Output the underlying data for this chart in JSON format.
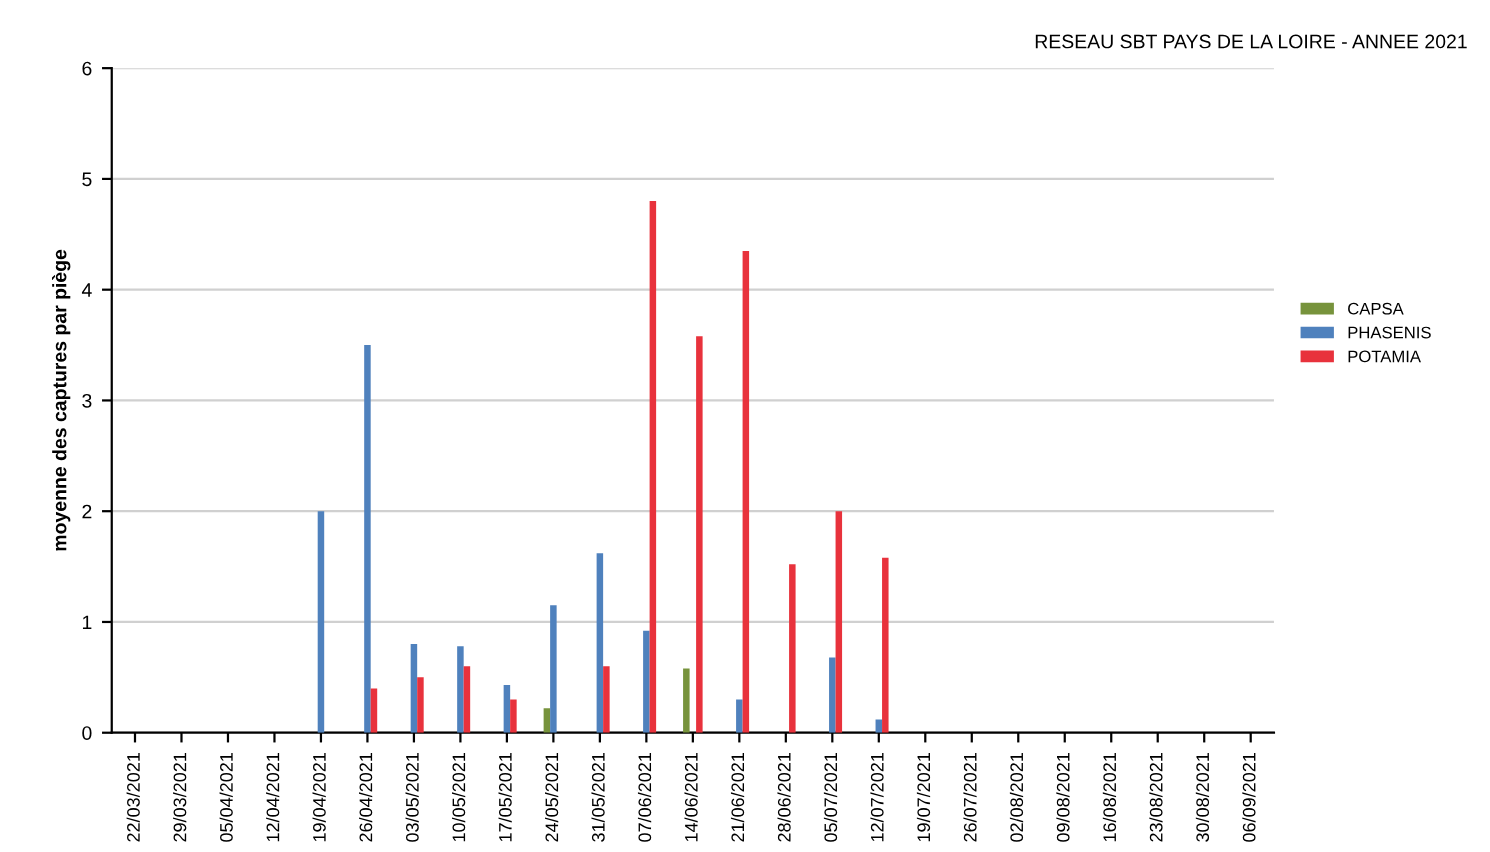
{
  "chart_data": {
    "type": "bar",
    "title": "RESEAU SBT PAYS DE LA LOIRE - ANNEE 2021",
    "ylabel": "moyenne des captures par piège",
    "categories": [
      "22/03/2021",
      "29/03/2021",
      "05/04/2021",
      "12/04/2021",
      "19/04/2021",
      "26/04/2021",
      "03/05/2021",
      "10/05/2021",
      "17/05/2021",
      "24/05/2021",
      "31/05/2021",
      "07/06/2021",
      "14/06/2021",
      "21/06/2021",
      "28/06/2021",
      "05/07/2021",
      "12/07/2021",
      "19/07/2021",
      "26/07/2021",
      "02/08/2021",
      "09/08/2021",
      "16/08/2021",
      "23/08/2021",
      "30/08/2021",
      "06/09/2021"
    ],
    "series": [
      {
        "name": "CAPSA",
        "color": "#77933c",
        "values": [
          0,
          0,
          0,
          0,
          0,
          0,
          0,
          0,
          0,
          0.22,
          0,
          0,
          0.58,
          0,
          0,
          0,
          0,
          0,
          0,
          0,
          0,
          0,
          0,
          0,
          0
        ]
      },
      {
        "name": "PHASENIS",
        "color": "#4f81bd",
        "values": [
          0,
          0,
          0,
          0,
          2.0,
          3.5,
          0.8,
          0.78,
          0.43,
          1.15,
          1.62,
          0.92,
          0,
          0.3,
          0,
          0.68,
          0.12,
          0,
          0,
          0,
          0,
          0,
          0,
          0,
          0
        ]
      },
      {
        "name": "POTAMIA",
        "color": "#e8323c",
        "values": [
          0,
          0,
          0,
          0,
          0,
          0.4,
          0.5,
          0.6,
          0.3,
          0,
          0.6,
          4.8,
          3.58,
          4.35,
          1.52,
          2.0,
          1.58,
          0,
          0,
          0,
          0,
          0,
          0,
          0,
          0
        ]
      }
    ],
    "ylim": [
      0,
      6
    ],
    "yticks": [
      0,
      1,
      2,
      3,
      4,
      5,
      6
    ],
    "grid": "y",
    "legend": "right"
  }
}
